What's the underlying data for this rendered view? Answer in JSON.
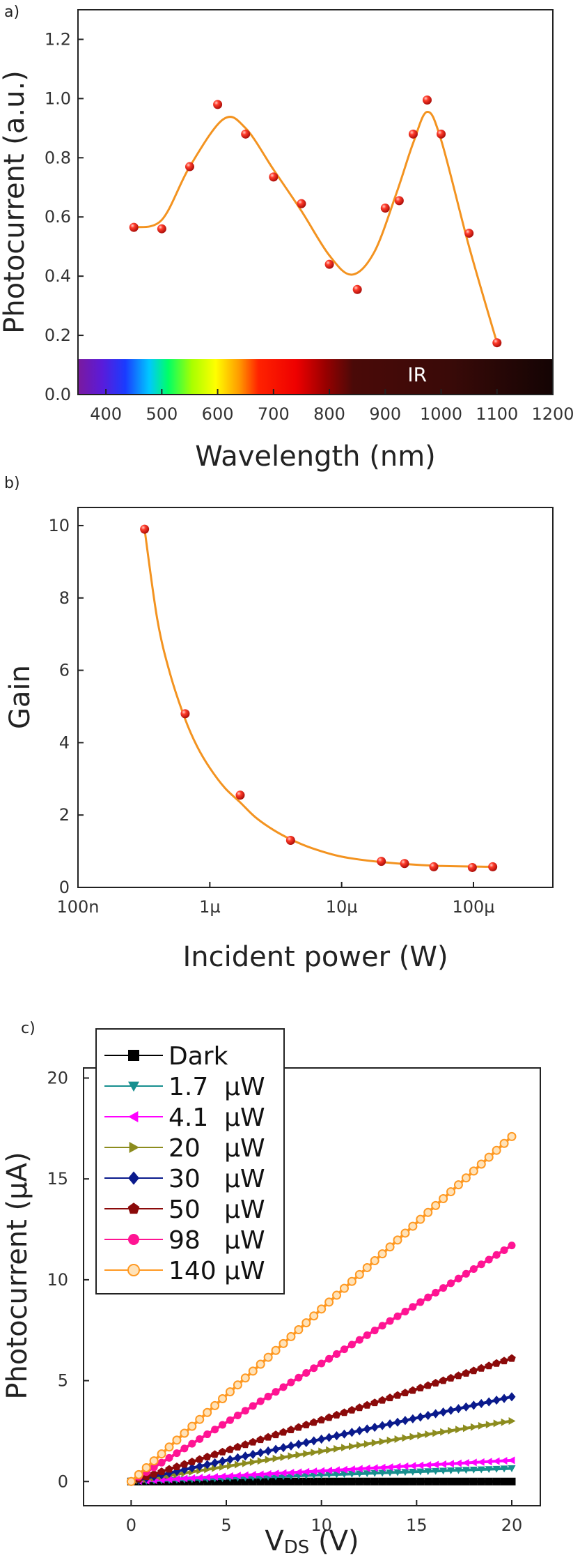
{
  "chart_data": [
    {
      "panel_label": "a)",
      "type": "scatter",
      "xlabel": "Wavelength (nm)",
      "ylabel": "Photocurrent (a.u.)",
      "xlim": [
        350,
        1200
      ],
      "ylim": [
        0.0,
        1.3
      ],
      "xticks": [
        400,
        500,
        600,
        700,
        800,
        900,
        1000,
        1100,
        1200
      ],
      "yticks": [
        "0.0",
        "0.2",
        "0.4",
        "0.6",
        "0.8",
        "1.0",
        "1.2"
      ],
      "x": [
        450,
        500,
        550,
        600,
        650,
        700,
        750,
        800,
        850,
        900,
        925,
        950,
        975,
        1000,
        1050,
        1100
      ],
      "y": [
        0.565,
        0.56,
        0.77,
        0.98,
        0.88,
        0.735,
        0.645,
        0.44,
        0.355,
        0.63,
        0.655,
        0.88,
        0.995,
        0.88,
        0.545,
        0.175
      ],
      "fit_x": [
        450,
        500,
        550,
        610,
        650,
        700,
        750,
        800,
        840,
        880,
        920,
        950,
        975,
        1000,
        1050,
        1100
      ],
      "fit_y": [
        0.565,
        0.59,
        0.77,
        0.93,
        0.9,
        0.76,
        0.62,
        0.47,
        0.405,
        0.48,
        0.68,
        0.85,
        0.955,
        0.86,
        0.5,
        0.175
      ],
      "annotation": "IR",
      "marker_color": "#e32119",
      "line_color": "#f39320",
      "grid": false
    },
    {
      "panel_label": "b)",
      "type": "scatter",
      "xlabel": "Incident power (W)",
      "ylabel": "Gain",
      "x_scale": "log",
      "xlim": [
        1e-07,
        0.0004
      ],
      "ylim": [
        0,
        10.5
      ],
      "xtick_labels": [
        "100n",
        "1µ",
        "10µ",
        "100µ"
      ],
      "xtick_values": [
        1e-07,
        1e-06,
        1e-05,
        0.0001
      ],
      "yticks": [
        "0",
        "2",
        "4",
        "6",
        "8",
        "10"
      ],
      "x": [
        3.2e-07,
        6.5e-07,
        1.7e-06,
        4.1e-06,
        2e-05,
        3e-05,
        5e-05,
        9.8e-05,
        0.00014
      ],
      "y": [
        9.9,
        4.8,
        2.55,
        1.3,
        0.72,
        0.66,
        0.57,
        0.55,
        0.57
      ],
      "fit_x": [
        3.2e-07,
        4e-07,
        5e-07,
        6.5e-07,
        8e-07,
        1e-06,
        1.3e-06,
        1.7e-06,
        2.2e-06,
        3e-06,
        4.1e-06,
        6e-06,
        1e-05,
        2e-05,
        5e-05,
        0.00014
      ],
      "fit_y": [
        9.9,
        7.4,
        5.9,
        4.65,
        3.9,
        3.3,
        2.75,
        2.35,
        1.95,
        1.6,
        1.33,
        1.08,
        0.85,
        0.7,
        0.6,
        0.57
      ],
      "marker_color": "#e32119",
      "line_color": "#f39320",
      "grid": false
    },
    {
      "panel_label": "c)",
      "type": "line",
      "xlabel": "V",
      "xlabel_sub": "DS",
      "xlabel_unit": " (V)",
      "ylabel": "Photocurrent (µA)",
      "xlim": [
        -2.5,
        21.5
      ],
      "ylim": [
        -1.2,
        20.5
      ],
      "xticks": [
        "0",
        "5",
        "10",
        "15",
        "20"
      ],
      "yticks": [
        "0",
        "5",
        "10",
        "15",
        "20"
      ],
      "legend_position": "top-left",
      "series": [
        {
          "name": "Dark",
          "color": "#000000",
          "marker": "square",
          "x": [
            0,
            20
          ],
          "y": [
            0,
            0
          ]
        },
        {
          "name": "1.7  µW",
          "color": "#178f8f",
          "marker": "triangle-down",
          "x": [
            0,
            20
          ],
          "y": [
            0,
            0.65
          ]
        },
        {
          "name": "4.1  µW",
          "color": "#ff00ff",
          "marker": "triangle-left",
          "x": [
            0,
            20
          ],
          "y": [
            0,
            1.05
          ]
        },
        {
          "name": "20   µW",
          "color": "#8c8c1e",
          "marker": "triangle-right",
          "x": [
            0,
            20
          ],
          "y": [
            0,
            3.0
          ]
        },
        {
          "name": "30   µW",
          "color": "#0a1a8c",
          "marker": "diamond",
          "x": [
            0,
            20
          ],
          "y": [
            0,
            4.2
          ]
        },
        {
          "name": "50   µW",
          "color": "#8b0a0a",
          "marker": "pentagon",
          "x": [
            0,
            20
          ],
          "y": [
            0,
            6.1
          ]
        },
        {
          "name": "98   µW",
          "color": "#ff1493",
          "marker": "circle",
          "x": [
            0,
            20
          ],
          "y": [
            0,
            11.7
          ]
        },
        {
          "name": "140 µW",
          "color": "#ff9922",
          "marker": "circle-open",
          "x": [
            0,
            20
          ],
          "y": [
            0,
            17.1
          ]
        }
      ],
      "grid": false
    }
  ]
}
